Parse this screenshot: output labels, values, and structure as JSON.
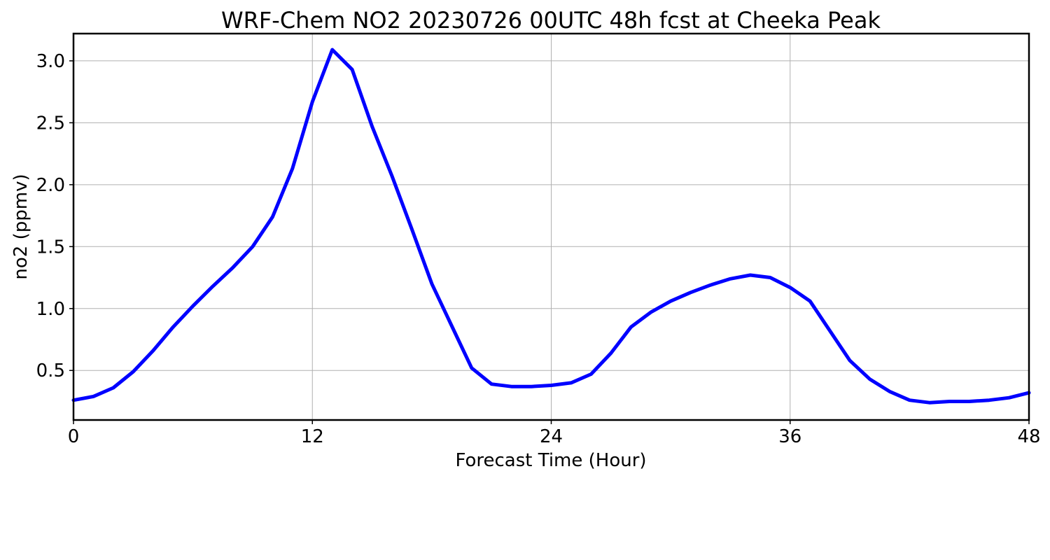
{
  "chart_data": {
    "type": "line",
    "title": "WRF-Chem NO2  20230726 00UTC 48h fcst at Cheeka Peak",
    "xlabel": "Forecast Time (Hour)",
    "ylabel": "no2  (ppmv)",
    "xlim": [
      0,
      48
    ],
    "ylim": [
      0.1,
      3.22
    ],
    "xticks": [
      0,
      12,
      24,
      36,
      48
    ],
    "yticks": [
      0.5,
      1.0,
      1.5,
      2.0,
      2.5,
      3.0
    ],
    "ytick_labels": [
      "0.5",
      "1.0",
      "1.5",
      "2.0",
      "2.5",
      "3.0"
    ],
    "grid": true,
    "series": [
      {
        "color": "#0000ff",
        "x": [
          0,
          1,
          2,
          3,
          4,
          5,
          6,
          7,
          8,
          9,
          10,
          11,
          12,
          13,
          14,
          15,
          16,
          17,
          18,
          19,
          20,
          21,
          22,
          23,
          24,
          25,
          26,
          27,
          28,
          29,
          30,
          31,
          32,
          33,
          34,
          35,
          36,
          37,
          38,
          39,
          40,
          41,
          42,
          43,
          44,
          45,
          46,
          47,
          48
        ],
        "y": [
          0.26,
          0.29,
          0.36,
          0.49,
          0.66,
          0.85,
          1.02,
          1.18,
          1.33,
          1.5,
          1.74,
          2.13,
          2.67,
          3.09,
          2.93,
          2.47,
          2.07,
          1.64,
          1.2,
          0.86,
          0.52,
          0.39,
          0.37,
          0.37,
          0.38,
          0.4,
          0.47,
          0.64,
          0.85,
          0.97,
          1.06,
          1.13,
          1.19,
          1.24,
          1.27,
          1.25,
          1.17,
          1.06,
          0.82,
          0.58,
          0.43,
          0.33,
          0.26,
          0.24,
          0.25,
          0.25,
          0.26,
          0.28,
          0.32
        ]
      }
    ]
  }
}
